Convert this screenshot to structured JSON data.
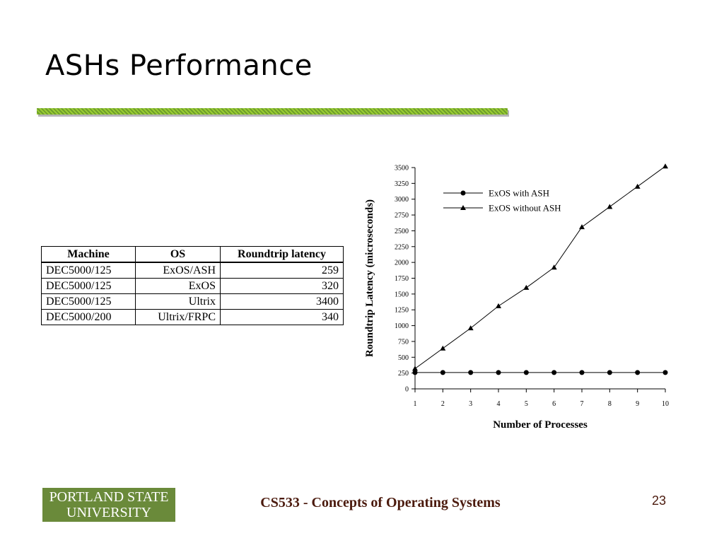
{
  "slide": {
    "title": "ASHs Performance",
    "footer": "CS533 - Concepts of Operating Systems",
    "page_number": "23",
    "logo_text": [
      "PORTLAND STATE",
      "UNIVERSITY"
    ]
  },
  "table": {
    "headers": [
      "Machine",
      "OS",
      "Roundtrip latency"
    ],
    "rows": [
      [
        "DEC5000/125",
        "ExOS/ASH",
        "259"
      ],
      [
        "DEC5000/125",
        "ExOS",
        "320"
      ],
      [
        "DEC5000/125",
        "Ultrix",
        "3400"
      ],
      [
        "DEC5000/200",
        "Ultrix/FRPC",
        "340"
      ]
    ]
  },
  "chart_data": {
    "type": "line",
    "title": "",
    "xlabel": "Number of Processes",
    "ylabel": "Roundtrip Latency (microseconds)",
    "x": [
      1,
      2,
      3,
      4,
      5,
      6,
      7,
      8,
      9,
      10
    ],
    "xlim": [
      1,
      10
    ],
    "ylim": [
      0,
      3500
    ],
    "yticks": [
      0,
      250,
      500,
      750,
      1000,
      1250,
      1500,
      1750,
      2000,
      2250,
      2500,
      2750,
      3000,
      3250,
      3500
    ],
    "grid": false,
    "legend_position": "top-left",
    "series": [
      {
        "name": "ExOS with ASH",
        "marker": "circle",
        "values": [
          259,
          259,
          259,
          259,
          259,
          259,
          259,
          259,
          259,
          259
        ]
      },
      {
        "name": "ExOS without ASH",
        "marker": "triangle",
        "values": [
          320,
          640,
          960,
          1310,
          1600,
          1920,
          2560,
          2880,
          3200,
          3520
        ]
      }
    ]
  }
}
